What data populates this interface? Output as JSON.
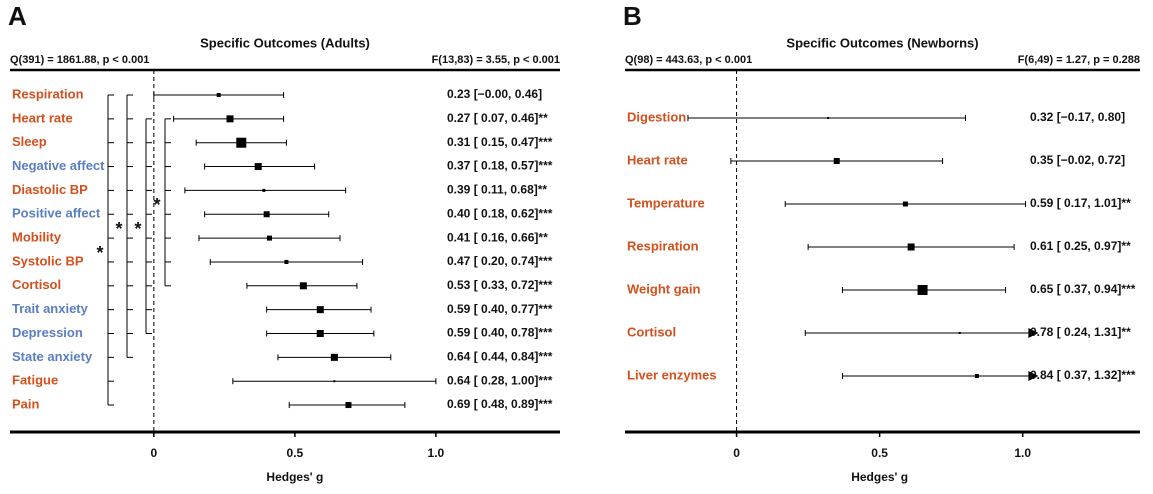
{
  "chart_data": [
    {
      "type": "forest",
      "panel": "A",
      "title": "Specific Outcomes (Adults)",
      "stat_left": "Q(391) = 1861.88, p < 0.001",
      "stat_right": "F(13,83) = 3.55, p < 0.001",
      "xlabel": "Hedges' g",
      "categories": [
        "Respiration",
        "Heart rate",
        "Sleep",
        "Negative affect",
        "Diastolic BP",
        "Positive affect",
        "Mobility",
        "Systolic BP",
        "Cortisol",
        "Trait anxiety",
        "Depression",
        "State anxiety",
        "Fatigue",
        "Pain"
      ],
      "category_colors": [
        "#d4501c",
        "#d4501c",
        "#d4501c",
        "#5a7ec4",
        "#d4501c",
        "#5a7ec4",
        "#d4501c",
        "#d4501c",
        "#d4501c",
        "#5a7ec4",
        "#5a7ec4",
        "#5a7ec4",
        "#d4501c",
        "#d4501c"
      ],
      "values": [
        0.23,
        0.27,
        0.31,
        0.37,
        0.39,
        0.4,
        0.41,
        0.47,
        0.53,
        0.59,
        0.59,
        0.64,
        0.64,
        0.69
      ],
      "lower": [
        -0.0,
        0.07,
        0.15,
        0.18,
        0.11,
        0.18,
        0.16,
        0.2,
        0.33,
        0.4,
        0.4,
        0.44,
        0.28,
        0.48
      ],
      "upper": [
        0.46,
        0.46,
        0.47,
        0.57,
        0.68,
        0.62,
        0.66,
        0.74,
        0.72,
        0.77,
        0.78,
        0.84,
        1.0,
        0.89
      ],
      "weights": [
        4,
        7,
        10,
        7,
        3,
        6,
        5,
        4,
        7,
        7,
        7,
        7,
        2,
        6
      ],
      "value_labels": [
        "0.23 [−0.00, 0.46]",
        "0.27 [ 0.07, 0.46]**",
        "0.31 [ 0.15, 0.47]***",
        "0.37 [ 0.18, 0.57]***",
        "0.39 [ 0.11, 0.68]**",
        "0.40 [ 0.18, 0.62]***",
        "0.41 [ 0.16, 0.66]**",
        "0.47 [ 0.20, 0.74]***",
        "0.53 [ 0.33, 0.72]***",
        "0.59 [ 0.40, 0.77]***",
        "0.59 [ 0.40, 0.78]***",
        "0.64 [ 0.44, 0.84]***",
        "0.64 [ 0.28, 1.00]***",
        "0.69 [ 0.48, 0.89]***"
      ],
      "brackets": [
        {
          "from": 0,
          "to": 13,
          "label": "*"
        },
        {
          "from": 0,
          "to": 11,
          "label": "*"
        },
        {
          "from": 1,
          "to": 10,
          "label": "*"
        },
        {
          "from": 1,
          "to": 8,
          "label": "*"
        }
      ],
      "refline": 0,
      "xlim": [
        -0.51,
        1.44
      ],
      "xticks": [
        0,
        0.5,
        {
          "value": 1,
          "label": "1.0"
        }
      ]
    },
    {
      "type": "forest",
      "panel": "B",
      "title": "Specific Outcomes (Newborns)",
      "stat_left": "Q(98) = 443.63, p < 0.001",
      "stat_right": "F(6,49) = 1.27, p = 0.288",
      "xlabel": "Hedges' g",
      "categories": [
        "Digestion",
        "Heart rate",
        "Temperature",
        "Respiration",
        "Weight gain",
        "Cortisol",
        "Liver enzymes"
      ],
      "category_colors": [
        "#d4501c",
        "#d4501c",
        "#d4501c",
        "#d4501c",
        "#d4501c",
        "#d4501c",
        "#d4501c"
      ],
      "values": [
        0.32,
        0.35,
        0.59,
        0.61,
        0.65,
        0.78,
        0.84
      ],
      "lower": [
        -0.17,
        -0.02,
        0.17,
        0.25,
        0.37,
        0.24,
        0.37
      ],
      "upper": [
        0.8,
        0.72,
        1.01,
        0.97,
        0.94,
        1.31,
        1.32
      ],
      "weights": [
        2,
        6,
        5,
        7,
        10,
        2,
        4
      ],
      "value_labels": [
        "0.32 [−0.17, 0.80]",
        "0.35 [−0.02, 0.72]",
        "0.59 [ 0.17, 1.01]**",
        "0.61 [ 0.25, 0.97]**",
        "0.65 [ 0.37, 0.94]***",
        "0.78 [ 0.24, 1.31]**",
        "0.84 [ 0.37, 1.32]***"
      ],
      "ci_clip": 1.02,
      "refline": 0,
      "xlim": [
        -0.39,
        1.41
      ],
      "xticks": [
        0,
        0.5,
        {
          "value": 1,
          "label": "1.0"
        }
      ]
    }
  ]
}
